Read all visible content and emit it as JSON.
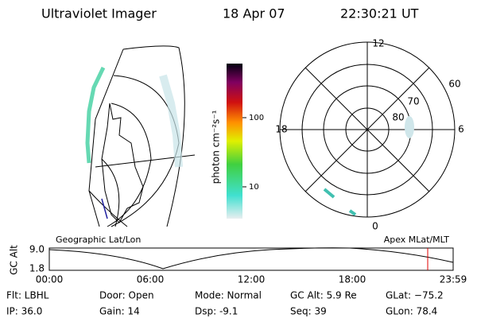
{
  "header": {
    "title": "Ultraviolet Imager",
    "date": "18 Apr 07",
    "time": "22:30:21 UT"
  },
  "colorbar": {
    "label": "photon cm⁻²s⁻¹",
    "ticks": [
      "100",
      "10"
    ]
  },
  "polar": {
    "mlt_labels": [
      "12",
      "18",
      "6",
      "0"
    ],
    "mlat_labels": [
      "60",
      "70",
      "80"
    ]
  },
  "panels": {
    "left": "Geographic Lat/Lon",
    "right": "Apex MLat/MLT"
  },
  "altitude": {
    "ylabel": "GC Alt",
    "yticks": [
      "9.0",
      "1.8"
    ],
    "xticks": [
      "00:00",
      "06:00",
      "12:00",
      "18:00",
      "23:59"
    ]
  },
  "footer": {
    "rows": [
      [
        "Flt: LBHL",
        "Door: Open",
        "Mode: Normal",
        "GC Alt: 5.9 Re",
        "GLat: −75.2"
      ],
      [
        "IP: 36.0",
        "Gain: 14",
        "Dsp: -9.1",
        "Seq: 39",
        "GLon: 78.4"
      ]
    ]
  }
}
